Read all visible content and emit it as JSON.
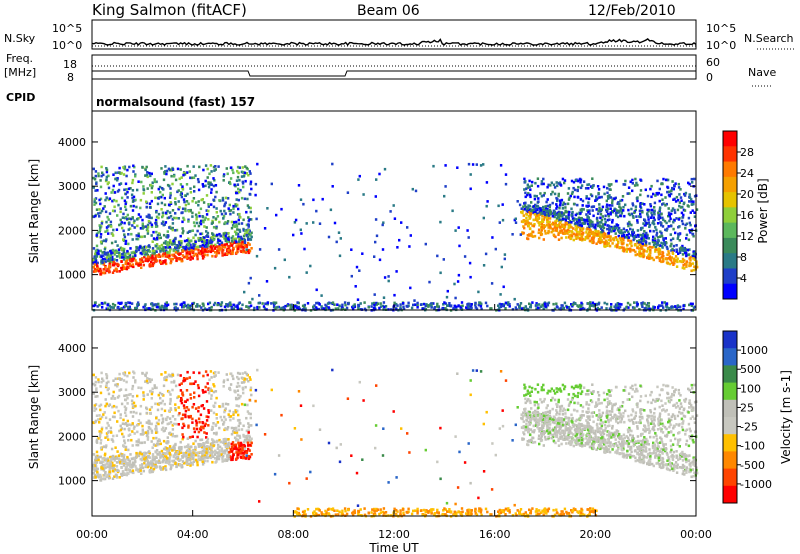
{
  "header": {
    "station": "King Salmon (fitACF)",
    "beam": "Beam 06",
    "date": "12/Feb/2010"
  },
  "labels": {
    "nsky": "N.Sky",
    "nsearch": "N.Search",
    "freq_line1": "Freq.",
    "freq_line2": "[MHz]",
    "nave": "Nave",
    "cpid": "CPID",
    "cpid_value": "normalsound (fast) 157"
  },
  "noise_axis": {
    "left_ticks": [
      "10^5",
      "10^0"
    ],
    "right_ticks": [
      "10^5",
      "10^0"
    ]
  },
  "freq_axis": {
    "left_ticks": [
      "18",
      "8"
    ],
    "right_ticks": [
      "60",
      "0"
    ]
  },
  "colors": {
    "power": [
      "#0000ff",
      "#1f3fc8",
      "#2a7a86",
      "#3a8a5a",
      "#5cb85c",
      "#8fcf3a",
      "#e6c300",
      "#f5a000",
      "#ff7a00",
      "#ff3300",
      "#ff0000"
    ],
    "velocity": [
      "#1a33c8",
      "#2a66c8",
      "#3a8a4a",
      "#66cc33",
      "#c0c0b8",
      "#c8c8c0",
      "#ffc000",
      "#ff8800",
      "#ff4400",
      "#ff0000"
    ]
  },
  "chart_data": [
    {
      "type": "heatmap",
      "title": "Power",
      "xlabel": "",
      "ylabel": "Slant Range [km]",
      "x_ticks": [
        "00:00",
        "04:00",
        "08:00",
        "12:00",
        "16:00",
        "20:00",
        "00:00"
      ],
      "y_ticks": [
        1000,
        2000,
        3000,
        4000
      ],
      "ylim": [
        200,
        4700
      ],
      "colorbar": {
        "label": "Power [dB]",
        "ticks": [
          4,
          8,
          12,
          16,
          20,
          24,
          28
        ],
        "range": [
          0,
          32
        ]
      },
      "features": [
        {
          "name": "dense band",
          "x_hours": [
            0,
            6.5
          ],
          "slant_range_km": [
            900,
            3500
          ]
        },
        {
          "name": "dense band",
          "x_hours": [
            17,
            24
          ],
          "slant_range_km": [
            900,
            3200
          ]
        },
        {
          "name": "ground scatter floor",
          "x_hours": [
            0,
            24
          ],
          "slant_range_km": [
            200,
            400
          ]
        }
      ]
    },
    {
      "type": "heatmap",
      "title": "Velocity",
      "xlabel": "Time UT",
      "ylabel": "Slant Range [km]",
      "x_ticks": [
        "00:00",
        "04:00",
        "08:00",
        "12:00",
        "16:00",
        "20:00",
        "00:00"
      ],
      "y_ticks": [
        1000,
        2000,
        3000,
        4000
      ],
      "ylim": [
        200,
        4700
      ],
      "colorbar": {
        "label": "Velocity [m s-1]",
        "ticks": [
          1000,
          500,
          100,
          25,
          -25,
          -100,
          -500,
          -1000
        ]
      }
    }
  ]
}
